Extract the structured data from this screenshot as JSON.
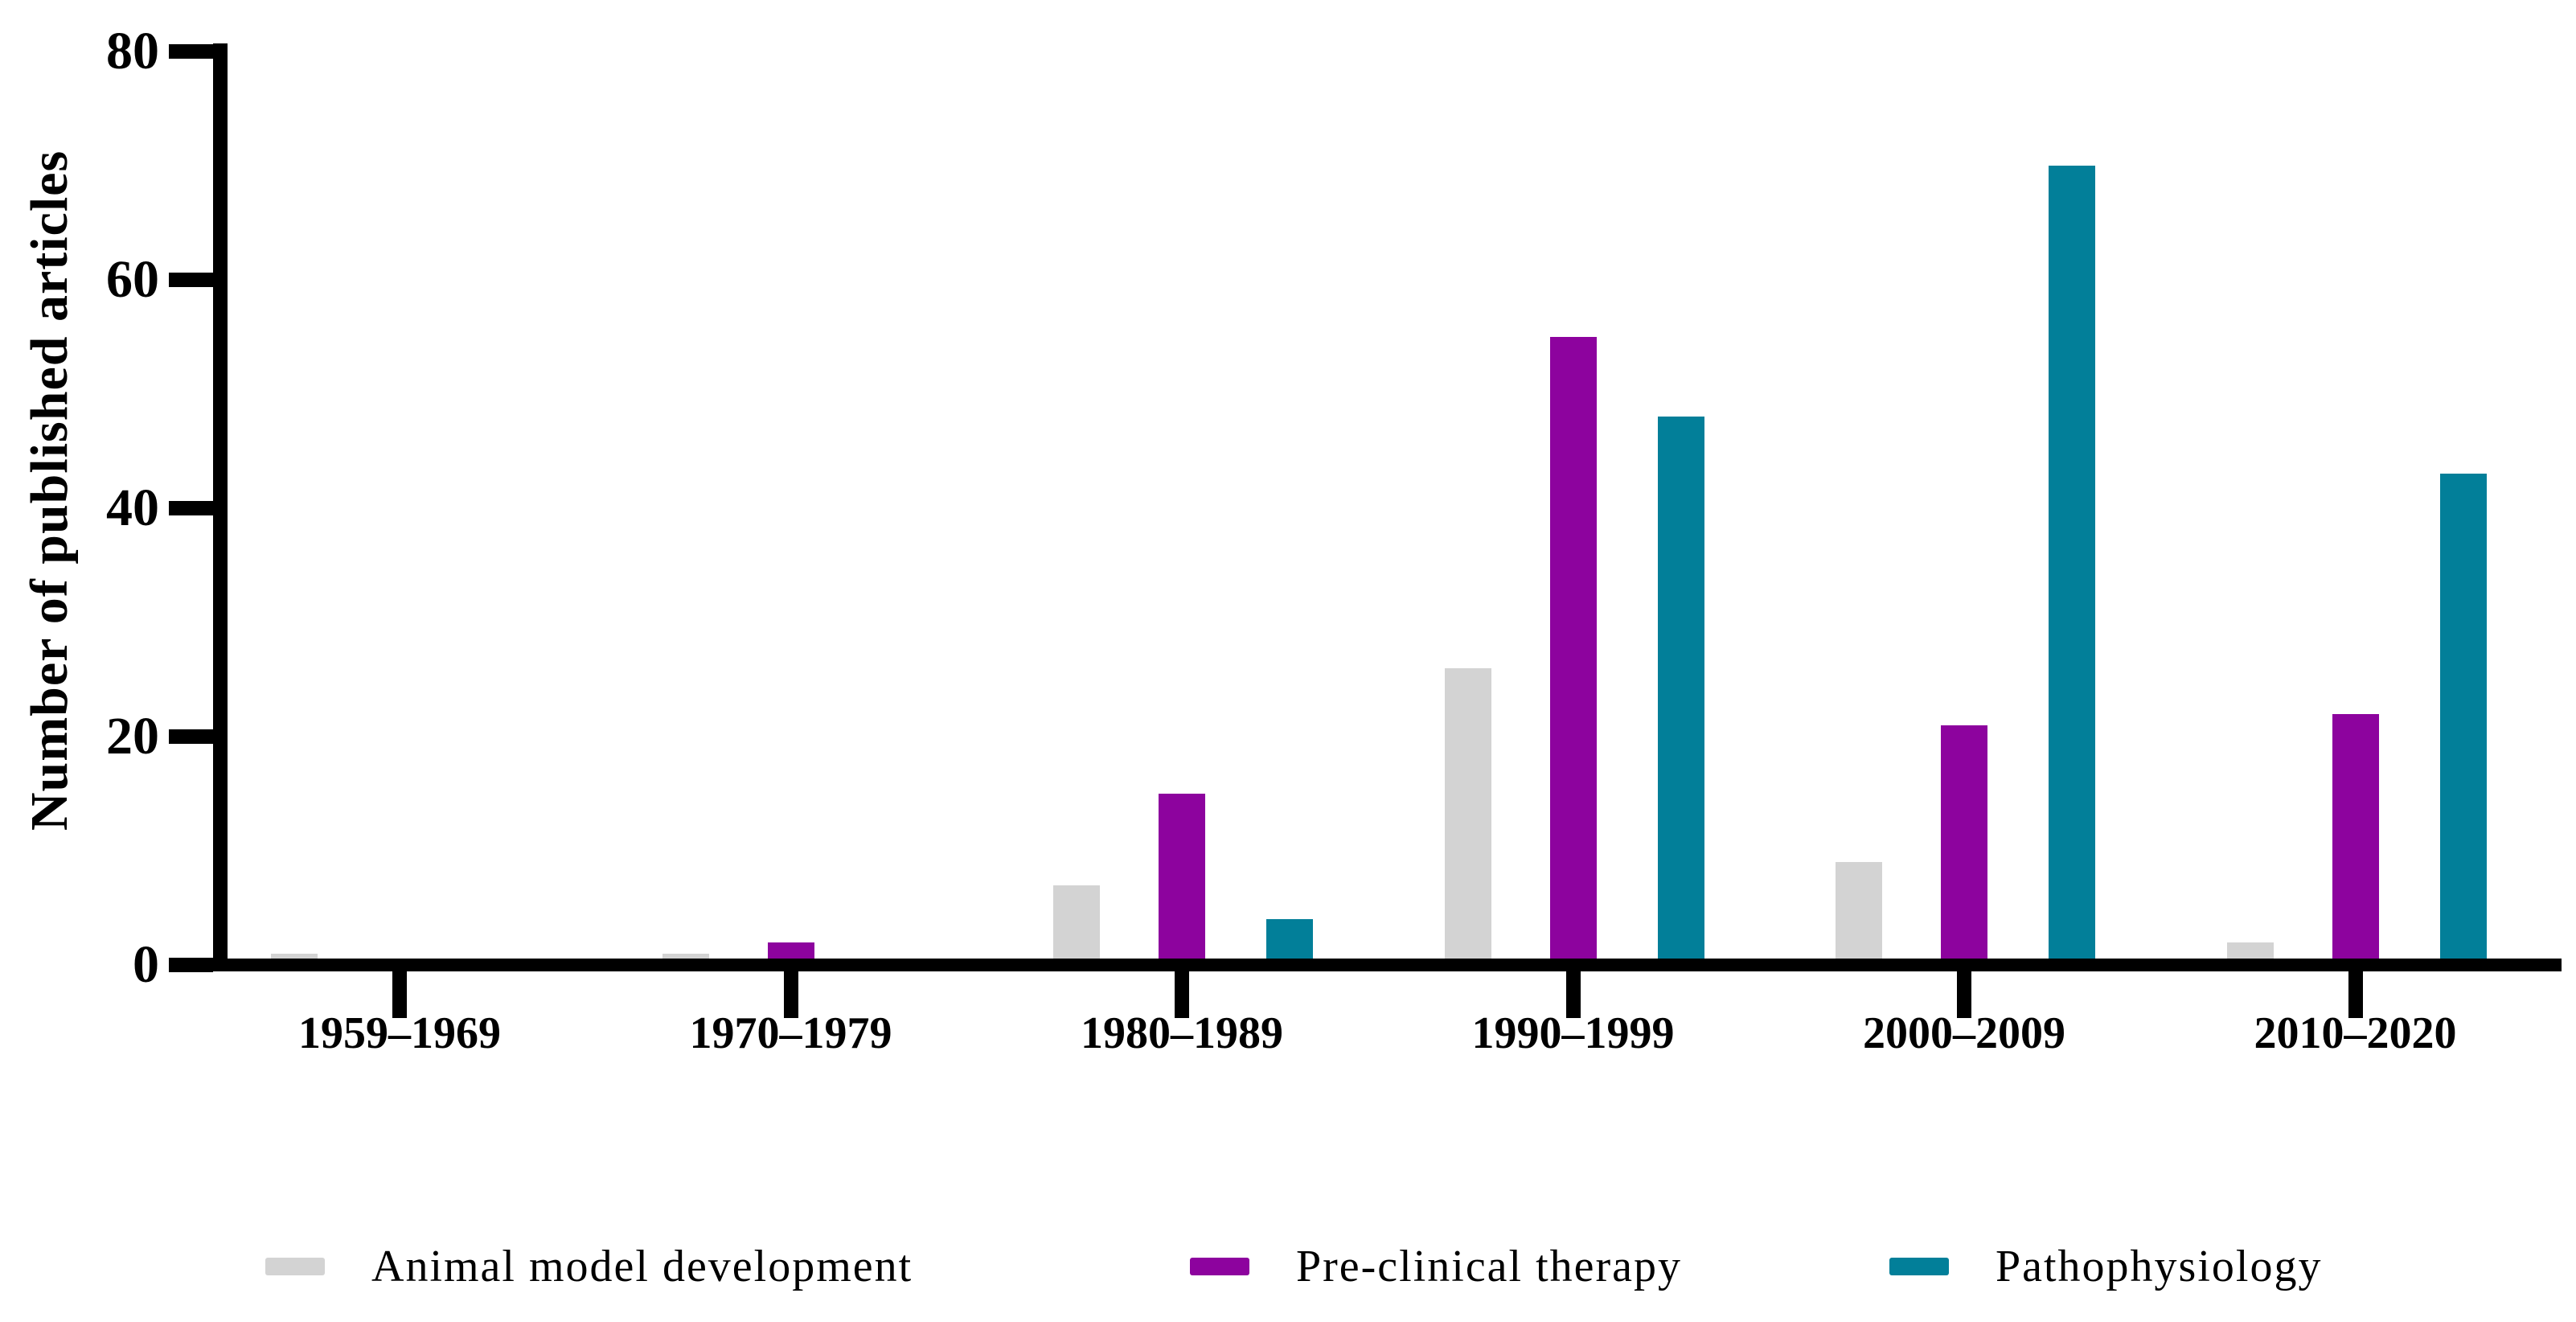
{
  "figure_title": "",
  "chart_data": {
    "type": "bar",
    "title": "",
    "xlabel": "",
    "ylabel": "Number of published articles",
    "ylim": [
      0,
      80
    ],
    "yticks": [
      0,
      20,
      40,
      60,
      80
    ],
    "grid": false,
    "legend_position": "bottom",
    "categories": [
      "1959–1969",
      "1970–1979",
      "1980–1989",
      "1990–1999",
      "2000–2009",
      "2010–2020"
    ],
    "series": [
      {
        "name": "Animal model development",
        "color": "#d3d3d3",
        "values": [
          1,
          1,
          7,
          26,
          9,
          2
        ]
      },
      {
        "name": "Pre-clinical therapy",
        "color": "#8d039e",
        "values": [
          0,
          2,
          15,
          55,
          21,
          22
        ]
      },
      {
        "name": "Pathophysiology",
        "color": "#027f99",
        "values": [
          0,
          0,
          4,
          48,
          70,
          43
        ]
      }
    ],
    "axis_color": "#000000"
  }
}
